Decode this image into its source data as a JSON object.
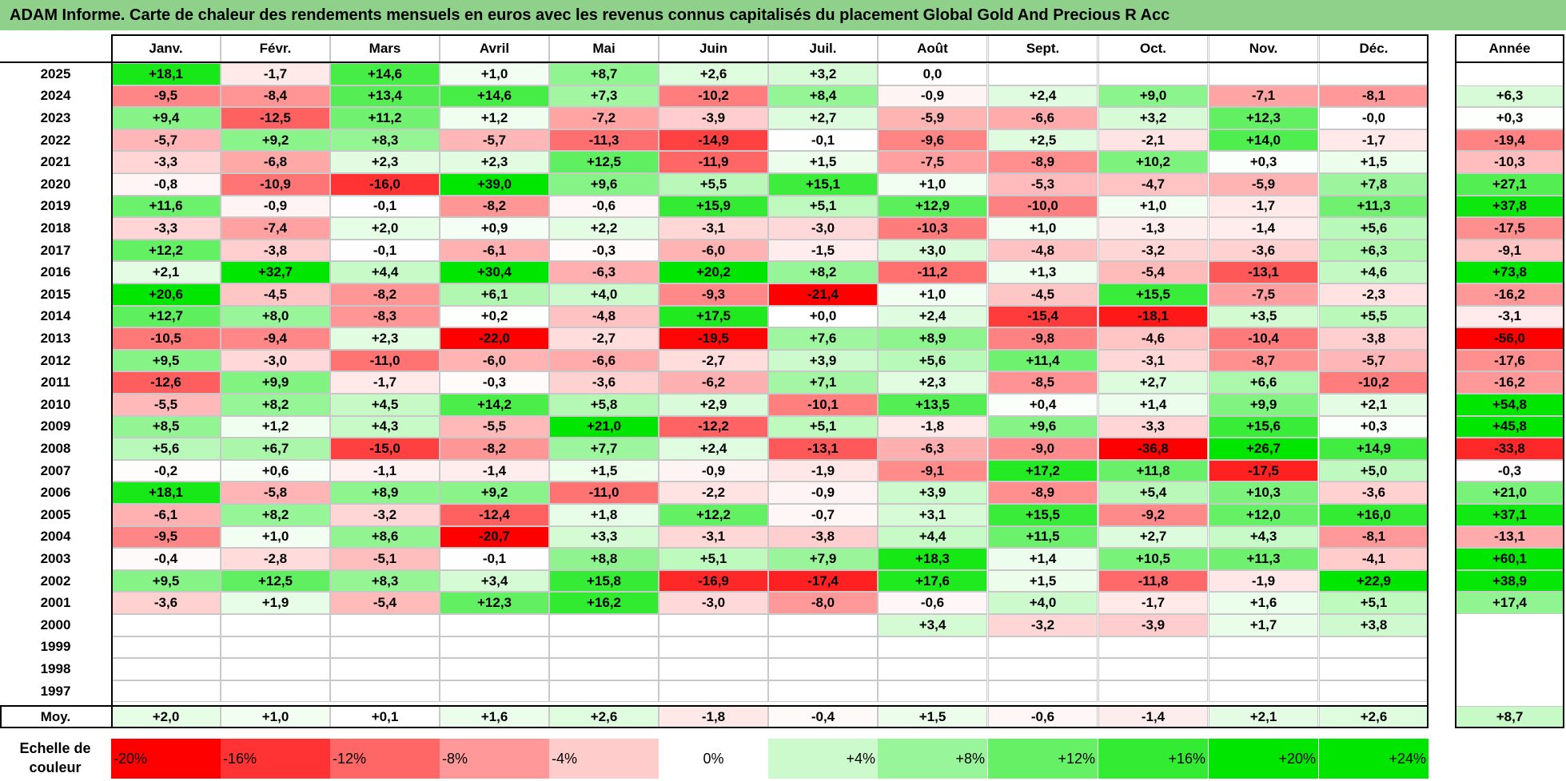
{
  "title": "ADAM Informe. Carte de chaleur des rendements mensuels en euros avec les revenus connus capitalisés du placement Global Gold And Precious R Acc",
  "chart_data": {
    "type": "heatmap",
    "title": "ADAM Informe. Carte de chaleur des rendements mensuels en euros avec les revenus connus capitalisés du placement Global Gold And Precious R Acc",
    "columns": [
      "Janv.",
      "Févr.",
      "Mars",
      "Avril",
      "Mai",
      "Juin",
      "Juil.",
      "Août",
      "Sept.",
      "Oct.",
      "Nov.",
      "Déc."
    ],
    "annual_header": "Année",
    "rows": [
      {
        "year": "2025",
        "months": [
          "+18,1",
          "-1,7",
          "+14,6",
          "+1,0",
          "+8,7",
          "+2,6",
          "+3,2",
          "0,0",
          "",
          "",
          "",
          ""
        ],
        "annual": ""
      },
      {
        "year": "2024",
        "months": [
          "-9,5",
          "-8,4",
          "+13,4",
          "+14,6",
          "+7,3",
          "-10,2",
          "+8,4",
          "-0,9",
          "+2,4",
          "+9,0",
          "-7,1",
          "-8,1"
        ],
        "annual": "+6,3"
      },
      {
        "year": "2023",
        "months": [
          "+9,4",
          "-12,5",
          "+11,2",
          "+1,2",
          "-7,2",
          "-3,9",
          "+2,7",
          "-5,9",
          "-6,6",
          "+3,2",
          "+12,3",
          "-0,0"
        ],
        "annual": "+0,3"
      },
      {
        "year": "2022",
        "months": [
          "-5,7",
          "+9,2",
          "+8,3",
          "-5,7",
          "-11,3",
          "-14,9",
          "-0,1",
          "-9,6",
          "+2,5",
          "-2,1",
          "+14,0",
          "-1,7"
        ],
        "annual": "-19,4"
      },
      {
        "year": "2021",
        "months": [
          "-3,3",
          "-6,8",
          "+2,3",
          "+2,3",
          "+12,5",
          "-11,9",
          "+1,5",
          "-7,5",
          "-8,9",
          "+10,2",
          "+0,3",
          "+1,5"
        ],
        "annual": "-10,3"
      },
      {
        "year": "2020",
        "months": [
          "-0,8",
          "-10,9",
          "-16,0",
          "+39,0",
          "+9,6",
          "+5,5",
          "+15,1",
          "+1,0",
          "-5,3",
          "-4,7",
          "-5,9",
          "+7,8"
        ],
        "annual": "+27,1"
      },
      {
        "year": "2019",
        "months": [
          "+11,6",
          "-0,9",
          "-0,1",
          "-8,2",
          "-0,6",
          "+15,9",
          "+5,1",
          "+12,9",
          "-10,0",
          "+1,0",
          "-1,7",
          "+11,3"
        ],
        "annual": "+37,8"
      },
      {
        "year": "2018",
        "months": [
          "-3,3",
          "-7,4",
          "+2,0",
          "+0,9",
          "+2,2",
          "-3,1",
          "-3,0",
          "-10,3",
          "+1,0",
          "-1,3",
          "-1,4",
          "+5,6"
        ],
        "annual": "-17,5"
      },
      {
        "year": "2017",
        "months": [
          "+12,2",
          "-3,8",
          "-0,1",
          "-6,1",
          "-0,3",
          "-6,0",
          "-1,5",
          "+3,0",
          "-4,8",
          "-3,2",
          "-3,6",
          "+6,3"
        ],
        "annual": "-9,1"
      },
      {
        "year": "2016",
        "months": [
          "+2,1",
          "+32,7",
          "+4,4",
          "+30,4",
          "-6,3",
          "+20,2",
          "+8,2",
          "-11,2",
          "+1,3",
          "-5,4",
          "-13,1",
          "+4,6"
        ],
        "annual": "+73,8"
      },
      {
        "year": "2015",
        "months": [
          "+20,6",
          "-4,5",
          "-8,2",
          "+6,1",
          "+4,0",
          "-9,3",
          "-21,4",
          "+1,0",
          "-4,5",
          "+15,5",
          "-7,5",
          "-2,3"
        ],
        "annual": "-16,2"
      },
      {
        "year": "2014",
        "months": [
          "+12,7",
          "+8,0",
          "-8,3",
          "+0,2",
          "-4,8",
          "+17,5",
          "+0,0",
          "+2,4",
          "-15,4",
          "-18,1",
          "+3,5",
          "+5,5"
        ],
        "annual": "-3,1"
      },
      {
        "year": "2013",
        "months": [
          "-10,5",
          "-9,4",
          "+2,3",
          "-22,0",
          "-2,7",
          "-19,5",
          "+7,6",
          "+8,9",
          "-9,8",
          "-4,6",
          "-10,4",
          "-3,8"
        ],
        "annual": "-56,0"
      },
      {
        "year": "2012",
        "months": [
          "+9,5",
          "-3,0",
          "-11,0",
          "-6,0",
          "-6,6",
          "-2,7",
          "+3,9",
          "+5,6",
          "+11,4",
          "-3,1",
          "-8,7",
          "-5,7"
        ],
        "annual": "-17,6"
      },
      {
        "year": "2011",
        "months": [
          "-12,6",
          "+9,9",
          "-1,7",
          "-0,3",
          "-3,6",
          "-6,2",
          "+7,1",
          "+2,3",
          "-8,5",
          "+2,7",
          "+6,6",
          "-10,2"
        ],
        "annual": "-16,2"
      },
      {
        "year": "2010",
        "months": [
          "-5,5",
          "+8,2",
          "+4,5",
          "+14,2",
          "+5,8",
          "+2,9",
          "-10,1",
          "+13,5",
          "+0,4",
          "+1,4",
          "+9,9",
          "+2,1"
        ],
        "annual": "+54,8"
      },
      {
        "year": "2009",
        "months": [
          "+8,5",
          "+1,2",
          "+4,3",
          "-5,5",
          "+21,0",
          "-12,2",
          "+5,1",
          "-1,8",
          "+9,6",
          "-3,3",
          "+15,6",
          "+0,3"
        ],
        "annual": "+45,8"
      },
      {
        "year": "2008",
        "months": [
          "+5,6",
          "+6,7",
          "-15,0",
          "-8,2",
          "+7,7",
          "+2,4",
          "-13,1",
          "-6,3",
          "-9,0",
          "-36,8",
          "+26,7",
          "+14,9"
        ],
        "annual": "-33,8"
      },
      {
        "year": "2007",
        "months": [
          "-0,2",
          "+0,6",
          "-1,1",
          "-1,4",
          "+1,5",
          "-0,9",
          "-1,9",
          "-9,1",
          "+17,2",
          "+11,8",
          "-17,5",
          "+5,0"
        ],
        "annual": "-0,3"
      },
      {
        "year": "2006",
        "months": [
          "+18,1",
          "-5,8",
          "+8,9",
          "+9,2",
          "-11,0",
          "-2,2",
          "-0,9",
          "+3,9",
          "-8,9",
          "+5,4",
          "+10,3",
          "-3,6"
        ],
        "annual": "+21,0"
      },
      {
        "year": "2005",
        "months": [
          "-6,1",
          "+8,2",
          "-3,2",
          "-12,4",
          "+1,8",
          "+12,2",
          "-0,7",
          "+3,1",
          "+15,5",
          "-9,2",
          "+12,0",
          "+16,0"
        ],
        "annual": "+37,1"
      },
      {
        "year": "2004",
        "months": [
          "-9,5",
          "+1,0",
          "+8,6",
          "-20,7",
          "+3,3",
          "-3,1",
          "-3,8",
          "+4,4",
          "+11,5",
          "+2,7",
          "+4,3",
          "-8,1"
        ],
        "annual": "-13,1"
      },
      {
        "year": "2003",
        "months": [
          "-0,4",
          "-2,8",
          "-5,1",
          "-0,1",
          "+8,8",
          "+5,1",
          "+7,9",
          "+18,3",
          "+1,4",
          "+10,5",
          "+11,3",
          "-4,1"
        ],
        "annual": "+60,1"
      },
      {
        "year": "2002",
        "months": [
          "+9,5",
          "+12,5",
          "+8,3",
          "+3,4",
          "+15,8",
          "-16,9",
          "-17,4",
          "+17,6",
          "+1,5",
          "-11,8",
          "-1,9",
          "+22,9"
        ],
        "annual": "+38,9"
      },
      {
        "year": "2001",
        "months": [
          "-3,6",
          "+1,9",
          "-5,4",
          "+12,3",
          "+16,2",
          "-3,0",
          "-8,0",
          "-0,6",
          "+4,0",
          "-1,7",
          "+1,6",
          "+5,1"
        ],
        "annual": "+17,4"
      },
      {
        "year": "2000",
        "months": [
          "",
          "",
          "",
          "",
          "",
          "",
          "",
          "+3,4",
          "-3,2",
          "-3,9",
          "+1,7",
          "+3,8"
        ],
        "annual": ""
      },
      {
        "year": "1999",
        "months": [
          "",
          "",
          "",
          "",
          "",
          "",
          "",
          "",
          "",
          "",
          "",
          ""
        ],
        "annual": ""
      },
      {
        "year": "1998",
        "months": [
          "",
          "",
          "",
          "",
          "",
          "",
          "",
          "",
          "",
          "",
          "",
          ""
        ],
        "annual": ""
      },
      {
        "year": "1997",
        "months": [
          "",
          "",
          "",
          "",
          "",
          "",
          "",
          "",
          "",
          "",
          "",
          ""
        ],
        "annual": ""
      }
    ],
    "average": {
      "label": "Moy.",
      "months": [
        "+2,0",
        "+1,0",
        "+0,1",
        "+1,6",
        "+2,6",
        "-1,8",
        "-0,4",
        "+1,5",
        "-0,6",
        "-1,4",
        "+2,1",
        "+2,6"
      ],
      "annual": "+8,7"
    },
    "scale": {
      "label": "Echelle de couleur",
      "steps": [
        {
          "label": "-20%",
          "value": -20
        },
        {
          "label": "-16%",
          "value": -16
        },
        {
          "label": "-12%",
          "value": -12
        },
        {
          "label": "-8%",
          "value": -8
        },
        {
          "label": "-4%",
          "value": -4
        },
        {
          "label": "0%",
          "value": 0
        },
        {
          "label": "+4%",
          "value": 4
        },
        {
          "label": "+8%",
          "value": 8
        },
        {
          "label": "+12%",
          "value": 12
        },
        {
          "label": "+16%",
          "value": 16
        },
        {
          "label": "+20%",
          "value": 20
        },
        {
          "label": "+24%",
          "value": 24
        }
      ]
    },
    "colors": {
      "negative": "#ff0000",
      "neutral": "#ffffff",
      "positive": "#00e600",
      "title_bg": "#8fd18a"
    }
  }
}
